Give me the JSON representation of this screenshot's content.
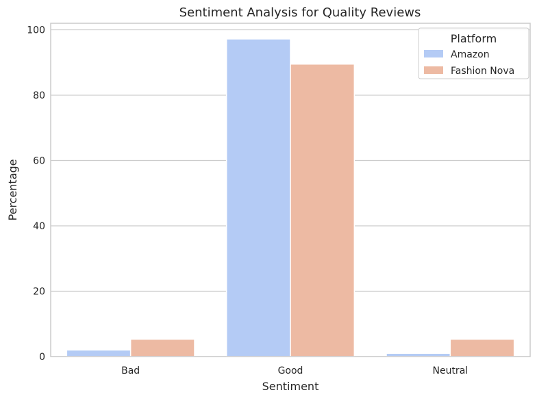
{
  "chart_data": {
    "type": "bar",
    "title": "Sentiment Analysis for Quality Reviews",
    "xlabel": "Sentiment",
    "ylabel": "Percentage",
    "categories": [
      "Bad",
      "Good",
      "Neutral"
    ],
    "series": [
      {
        "name": "Amazon",
        "values": [
          2.0,
          97.2,
          1.0
        ],
        "color": "#b4cbf5"
      },
      {
        "name": "Fashion Nova",
        "values": [
          5.3,
          89.5,
          5.3
        ],
        "color": "#edbaa3"
      }
    ],
    "ylim": [
      0,
      102
    ],
    "yticks": [
      0,
      20,
      40,
      60,
      80,
      100
    ],
    "grid": "horizontal",
    "legend": {
      "title": "Platform",
      "placement": "top-right"
    }
  }
}
